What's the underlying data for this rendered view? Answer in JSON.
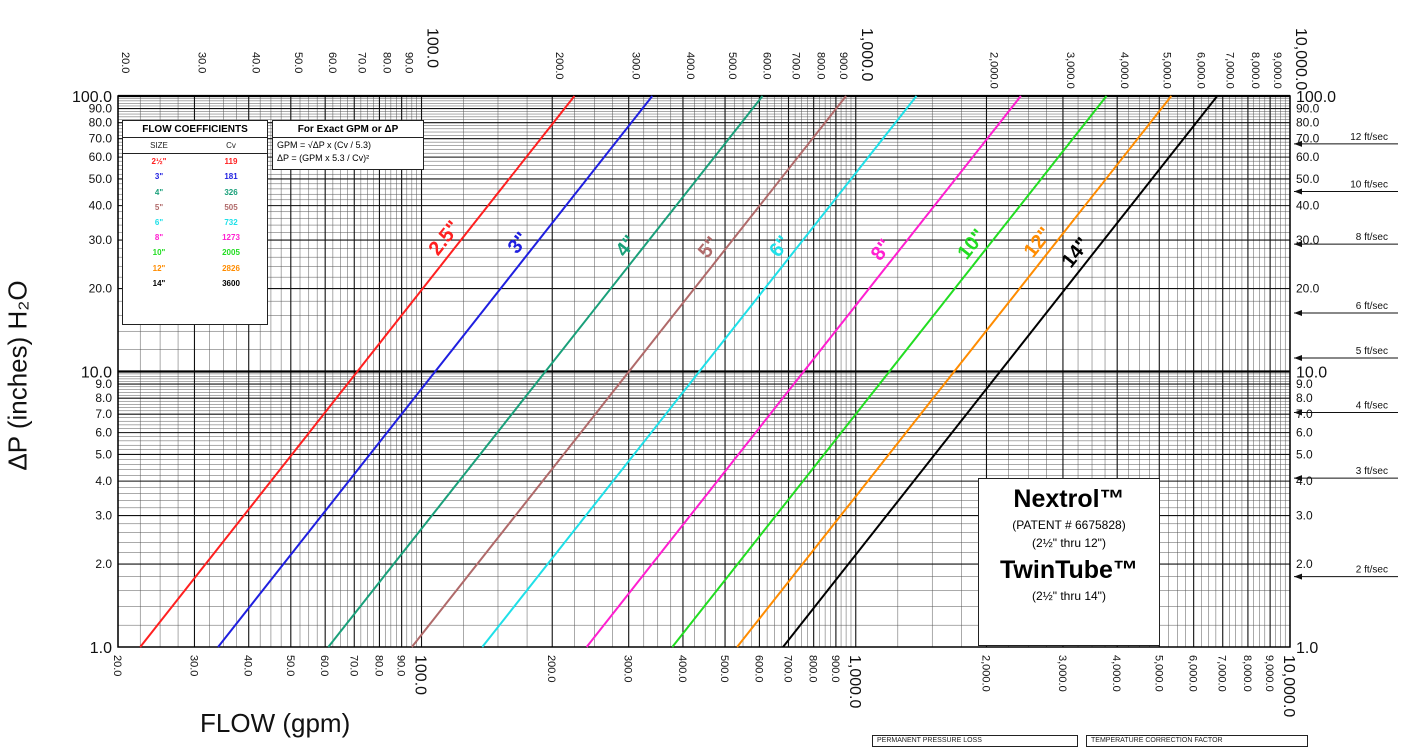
{
  "chart_data": {
    "type": "line",
    "xlabel": "FLOW (gpm)",
    "ylabel": "ΔP (inches) H₂O",
    "xscale": "log",
    "yscale": "log",
    "xlim": [
      20,
      10000
    ],
    "ylim": [
      1,
      100
    ],
    "grid": true,
    "x_tick_labels": [
      {
        "v": 20,
        "t": "20.0"
      },
      {
        "v": 30,
        "t": "30.0"
      },
      {
        "v": 40,
        "t": "40.0"
      },
      {
        "v": 50,
        "t": "50.0"
      },
      {
        "v": 60,
        "t": "60.0"
      },
      {
        "v": 70,
        "t": "70.0"
      },
      {
        "v": 80,
        "t": "80.0"
      },
      {
        "v": 90,
        "t": "90.0"
      },
      {
        "v": 100,
        "t": "100.0"
      },
      {
        "v": 200,
        "t": "200.0"
      },
      {
        "v": 300,
        "t": "300.0"
      },
      {
        "v": 400,
        "t": "400.0"
      },
      {
        "v": 500,
        "t": "500.0"
      },
      {
        "v": 600,
        "t": "600.0"
      },
      {
        "v": 700,
        "t": "700.0"
      },
      {
        "v": 800,
        "t": "800.0"
      },
      {
        "v": 900,
        "t": "900.0"
      },
      {
        "v": 1000,
        "t": "1,000.0"
      },
      {
        "v": 2000,
        "t": "2,000.0"
      },
      {
        "v": 3000,
        "t": "3,000.0"
      },
      {
        "v": 4000,
        "t": "4,000.0"
      },
      {
        "v": 5000,
        "t": "5,000.0"
      },
      {
        "v": 6000,
        "t": "6,000.0"
      },
      {
        "v": 7000,
        "t": "7,000.0"
      },
      {
        "v": 8000,
        "t": "8,000.0"
      },
      {
        "v": 9000,
        "t": "9,000.0"
      },
      {
        "v": 10000,
        "t": "10,000.0"
      }
    ],
    "y_tick_labels": [
      {
        "v": 1,
        "t": "1.0"
      },
      {
        "v": 2,
        "t": "2.0"
      },
      {
        "v": 3,
        "t": "3.0"
      },
      {
        "v": 4,
        "t": "4.0"
      },
      {
        "v": 5,
        "t": "5.0"
      },
      {
        "v": 6,
        "t": "6.0"
      },
      {
        "v": 7,
        "t": "7.0"
      },
      {
        "v": 8,
        "t": "8.0"
      },
      {
        "v": 9,
        "t": "9.0"
      },
      {
        "v": 10,
        "t": "10.0"
      },
      {
        "v": 20,
        "t": "20.0"
      },
      {
        "v": 30,
        "t": "30.0"
      },
      {
        "v": 40,
        "t": "40.0"
      },
      {
        "v": 50,
        "t": "50.0"
      },
      {
        "v": 60,
        "t": "60.0"
      },
      {
        "v": 70,
        "t": "70.0"
      },
      {
        "v": 80,
        "t": "80.0"
      },
      {
        "v": 90,
        "t": "90.0"
      },
      {
        "v": 100,
        "t": "100.0"
      }
    ],
    "major_y": [
      10,
      100
    ],
    "series": [
      {
        "name": "2.5\"",
        "cv": 119,
        "color": "#ff2020",
        "x": [
          22.5,
          225
        ],
        "y": [
          1,
          100
        ],
        "label_at": 115
      },
      {
        "name": "3\"",
        "cv": 181,
        "color": "#1f1fe0",
        "x": [
          34,
          340
        ],
        "y": [
          1,
          100
        ],
        "label_at": 175
      },
      {
        "name": "4\"",
        "cv": 326,
        "color": "#1aa07a",
        "x": [
          61,
          610
        ],
        "y": [
          1,
          100
        ],
        "label_at": 310
      },
      {
        "name": "5\"",
        "cv": 505,
        "color": "#b06a6a",
        "x": [
          95,
          950
        ],
        "y": [
          1,
          100
        ],
        "label_at": 480
      },
      {
        "name": "6\"",
        "cv": 732,
        "color": "#1fe0e8",
        "x": [
          138,
          1380
        ],
        "y": [
          1,
          100
        ],
        "label_at": 700
      },
      {
        "name": "8\"",
        "cv": 1273,
        "color": "#ff1fd0",
        "x": [
          240,
          2400
        ],
        "y": [
          1,
          100
        ],
        "label_at": 1200
      },
      {
        "name": "10\"",
        "cv": 2005,
        "color": "#22dd22",
        "x": [
          378,
          3780
        ],
        "y": [
          1,
          100
        ],
        "label_at": 1900
      },
      {
        "name": "12\"",
        "cv": 2826,
        "color": "#ff8c00",
        "x": [
          533,
          5330
        ],
        "y": [
          1,
          100
        ],
        "label_at": 2700
      },
      {
        "name": "14\"",
        "cv": 3600,
        "color": "#000000",
        "x": [
          680,
          6800
        ],
        "y": [
          1,
          100
        ],
        "label_at": 3300
      }
    ],
    "velocity_markers": [
      {
        "label": "12 ft/sec",
        "y": 67
      },
      {
        "label": "10 ft/sec",
        "y": 45
      },
      {
        "label": "8 ft/sec",
        "y": 29
      },
      {
        "label": "6 ft/sec",
        "y": 16.3
      },
      {
        "label": "5 ft/sec",
        "y": 11.2
      },
      {
        "label": "4 ft/sec",
        "y": 7.1
      },
      {
        "label": "3 ft/sec",
        "y": 4.1
      },
      {
        "label": "2 ft/sec",
        "y": 1.8
      }
    ]
  },
  "flow_coefficients": {
    "title": "FLOW COEFFICIENTS",
    "col_size": "SIZE",
    "col_cv": "Cv",
    "rows": [
      {
        "size": "2½\"",
        "cv": "119",
        "color": "#ff2020"
      },
      {
        "size": "3\"",
        "cv": "181",
        "color": "#1f1fe0"
      },
      {
        "size": "4\"",
        "cv": "326",
        "color": "#1aa07a"
      },
      {
        "size": "5\"",
        "cv": "505",
        "color": "#b06a6a"
      },
      {
        "size": "6\"",
        "cv": "732",
        "color": "#1fe0e8"
      },
      {
        "size": "8\"",
        "cv": "1273",
        "color": "#ff1fd0"
      },
      {
        "size": "10\"",
        "cv": "2005",
        "color": "#22dd22"
      },
      {
        "size": "12\"",
        "cv": "2826",
        "color": "#ff8c00"
      },
      {
        "size": "14\"",
        "cv": "3600",
        "color": "#000000"
      }
    ]
  },
  "exact_box": {
    "title": "For Exact GPM or ΔP",
    "formula1": "GPM = √ΔP x (Cv / 5.3)",
    "formula2": "ΔP = (GPM x 5.3 / Cv)²"
  },
  "brand_box": {
    "brand1": "Nextrol™",
    "patent": "(PATENT # 6675828)",
    "range1": "(2½\" thru 12\")",
    "brand2": "TwinTube™",
    "range2": "(2½\" thru 14\")"
  },
  "footer_boxes": {
    "left": "PERMANENT PRESSURE LOSS",
    "right": "TEMPERATURE CORRECTION FACTOR"
  }
}
